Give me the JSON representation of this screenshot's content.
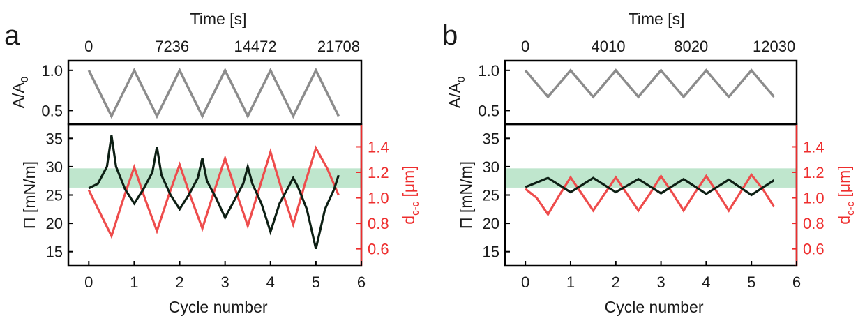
{
  "chart_data": [
    {
      "panel": "a",
      "type": "line",
      "top_axis": {
        "label": "Time [s]",
        "ticks": [
          "0",
          "7236",
          "14472",
          "21708"
        ]
      },
      "bottom_axis": {
        "label": "Cycle number",
        "ticks": [
          "0",
          "1",
          "2",
          "3",
          "4",
          "5",
          "6"
        ],
        "range": [
          -0.45,
          6
        ]
      },
      "upper_plot": {
        "ylabel": "A/A0",
        "ylabel_main": "A/A",
        "ylabel_sub": "0",
        "ylim": [
          0.33,
          1.12
        ],
        "y_ticks": [
          "0.5",
          "1.0"
        ],
        "series": [
          {
            "color": "#8c8c8c",
            "x": [
              0,
              0.5,
              1,
              1.5,
              2,
              2.5,
              3,
              3.5,
              4,
              4.5,
              5,
              5.5
            ],
            "y": [
              1.0,
              0.43,
              1.0,
              0.43,
              1.0,
              0.43,
              1.0,
              0.43,
              1.0,
              0.43,
              1.0,
              0.43
            ]
          }
        ]
      },
      "lower_plot": {
        "ylabel_left": "Π [mN/m]",
        "ylabel_right": "dc-c [μm]",
        "ylabel_right_main": "d",
        "ylabel_right_sub": "c-c",
        "ylabel_right_unit": " [μm]",
        "ylim_left": [
          12.5,
          37.5
        ],
        "ylim_right": [
          0.4667,
          1.5777
        ],
        "y_ticks_left": [
          "15",
          "20",
          "25",
          "30",
          "35"
        ],
        "y_ticks_right": [
          "0.6",
          "0.8",
          "1.0",
          "1.2",
          "1.4"
        ],
        "band_left": [
          26.3,
          29.7
        ],
        "band_color": "#bfe6cd",
        "pressure_series": {
          "color": "#0d1f14",
          "x": [
            0,
            0.2,
            0.4,
            0.5,
            0.6,
            0.8,
            1.0,
            1.2,
            1.4,
            1.5,
            1.6,
            1.8,
            2.0,
            2.2,
            2.4,
            2.5,
            2.6,
            2.8,
            3.0,
            3.2,
            3.4,
            3.5,
            3.6,
            3.8,
            4.0,
            4.2,
            4.4,
            4.5,
            4.6,
            4.8,
            5.0,
            5.2,
            5.4,
            5.5
          ],
          "y": [
            26.2,
            27.0,
            30.0,
            35.5,
            30.0,
            26.0,
            23.5,
            26.0,
            29.0,
            33.5,
            28.5,
            25.0,
            22.5,
            25.0,
            28.0,
            31.5,
            27.5,
            24.5,
            21.0,
            24.0,
            27.0,
            30.0,
            27.0,
            23.5,
            18.5,
            23.5,
            26.5,
            28.0,
            26.5,
            22.5,
            15.5,
            22.5,
            26.0,
            28.5
          ]
        },
        "distance_series": {
          "color": "#ee4c4c",
          "x": [
            0,
            0.25,
            0.5,
            0.75,
            1.0,
            1.25,
            1.5,
            1.75,
            2.0,
            2.25,
            2.5,
            2.75,
            3.0,
            3.25,
            3.5,
            3.75,
            4.0,
            4.25,
            4.5,
            4.75,
            5.0,
            5.25,
            5.5
          ],
          "y": [
            1.06,
            0.88,
            0.7,
            0.98,
            1.24,
            0.98,
            0.74,
            1.01,
            1.26,
            1.0,
            0.76,
            1.04,
            1.31,
            1.04,
            0.78,
            1.07,
            1.36,
            1.06,
            0.79,
            1.1,
            1.39,
            1.23,
            1.02
          ]
        }
      }
    },
    {
      "panel": "b",
      "type": "line",
      "top_axis": {
        "label": "Time [s]",
        "ticks": [
          "0",
          "4010",
          "8020",
          "12030"
        ]
      },
      "bottom_axis": {
        "label": "Cycle number",
        "ticks": [
          "0",
          "1",
          "2",
          "3",
          "4",
          "5",
          "6"
        ],
        "range": [
          -0.45,
          6
        ]
      },
      "upper_plot": {
        "ylabel": "A/A0",
        "ylabel_main": "A/A",
        "ylabel_sub": "0",
        "ylim": [
          0.33,
          1.12
        ],
        "y_ticks": [
          "0.5",
          "1.0"
        ],
        "series": [
          {
            "color": "#8c8c8c",
            "x": [
              0,
              0.5,
              1,
              1.5,
              2,
              2.5,
              3,
              3.5,
              4,
              4.5,
              5,
              5.5
            ],
            "y": [
              1.0,
              0.67,
              1.0,
              0.67,
              1.0,
              0.67,
              1.0,
              0.67,
              1.0,
              0.67,
              1.0,
              0.67
            ]
          }
        ]
      },
      "lower_plot": {
        "ylabel_left": "Π [mN/m]",
        "ylabel_right": "dc-c [μm]",
        "ylabel_right_main": "d",
        "ylabel_right_sub": "c-c",
        "ylabel_right_unit": " [μm]",
        "ylim_left": [
          12.5,
          37.5
        ],
        "ylim_right": [
          0.4667,
          1.5777
        ],
        "y_ticks_left": [
          "15",
          "20",
          "25",
          "30",
          "35"
        ],
        "y_ticks_right": [
          "0.6",
          "0.8",
          "1.0",
          "1.2",
          "1.4"
        ],
        "band_left": [
          26.3,
          29.7
        ],
        "band_color": "#bfe6cd",
        "pressure_series": {
          "color": "#0d1f14",
          "x": [
            0,
            0.5,
            1,
            1.5,
            2,
            2.5,
            3,
            3.5,
            4,
            4.5,
            5,
            5.5
          ],
          "y": [
            26.4,
            28.0,
            25.5,
            28.0,
            25.5,
            27.8,
            25.3,
            27.8,
            25.2,
            27.7,
            25.0,
            27.6
          ]
        },
        "distance_series": {
          "color": "#ee4c4c",
          "x": [
            0,
            0.25,
            0.5,
            0.75,
            1.0,
            1.25,
            1.5,
            1.75,
            2.0,
            2.25,
            2.5,
            2.75,
            3.0,
            3.25,
            3.5,
            3.75,
            4.0,
            4.25,
            4.5,
            4.75,
            5.0,
            5.25,
            5.5
          ],
          "y": [
            1.07,
            1.0,
            0.87,
            1.02,
            1.16,
            1.03,
            0.9,
            1.03,
            1.16,
            1.03,
            0.9,
            1.03,
            1.17,
            1.04,
            0.9,
            1.04,
            1.17,
            1.04,
            0.9,
            1.04,
            1.18,
            1.07,
            0.93
          ]
        }
      }
    }
  ]
}
